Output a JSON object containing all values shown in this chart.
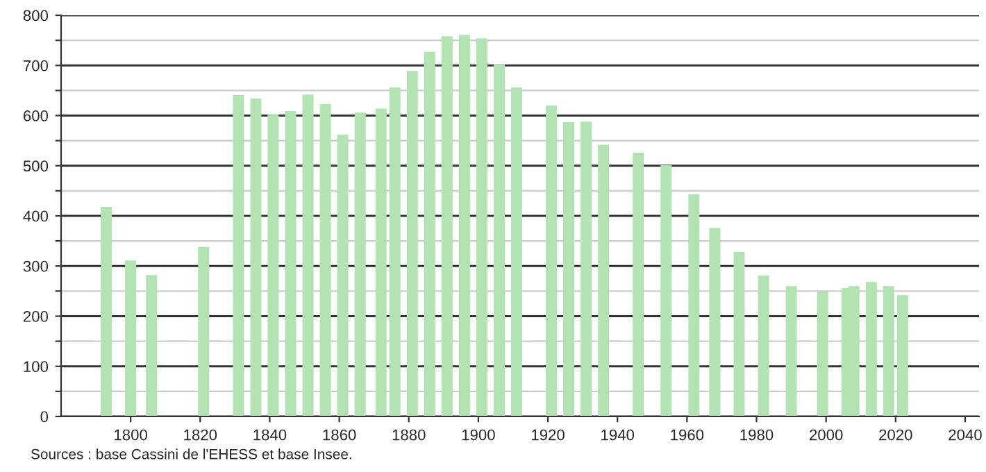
{
  "chart_data": {
    "type": "bar",
    "x": [
      1793,
      1800,
      1806,
      1821,
      1831,
      1836,
      1841,
      1846,
      1851,
      1856,
      1861,
      1866,
      1872,
      1876,
      1881,
      1886,
      1891,
      1896,
      1901,
      1906,
      1911,
      1921,
      1926,
      1931,
      1936,
      1946,
      1954,
      1962,
      1968,
      1975,
      1982,
      1990,
      1999,
      2006,
      2008,
      2013,
      2018,
      2022
    ],
    "values": [
      418,
      311,
      282,
      338,
      641,
      634,
      603,
      609,
      642,
      623,
      562,
      606,
      614,
      656,
      689,
      727,
      758,
      761,
      754,
      702,
      656,
      620,
      587,
      588,
      542,
      526,
      501,
      443,
      376,
      328,
      281,
      260,
      249,
      256,
      260,
      268,
      260,
      242
    ],
    "color": "#b3e3b3",
    "xlim": [
      1780,
      2044
    ],
    "xticks": [
      1800,
      1820,
      1840,
      1860,
      1880,
      1900,
      1920,
      1940,
      1960,
      1980,
      2000,
      2020,
      2040
    ],
    "ylim": [
      0,
      800
    ],
    "yticks": [
      0,
      {
        "value": 50,
        "label": null
      },
      100,
      {
        "value": 150,
        "label": null
      },
      200,
      {
        "value": 250,
        "label": null
      },
      300,
      {
        "value": 350,
        "label": null
      },
      400,
      {
        "value": 450,
        "label": null
      },
      500,
      {
        "value": 550,
        "label": null
      },
      600,
      {
        "value": 650,
        "label": null
      },
      700,
      {
        "value": 750,
        "label": null
      },
      800
    ],
    "grid": "y",
    "annotations": [
      "Sources : base Cassini de l'EHESS et base Insee."
    ]
  }
}
